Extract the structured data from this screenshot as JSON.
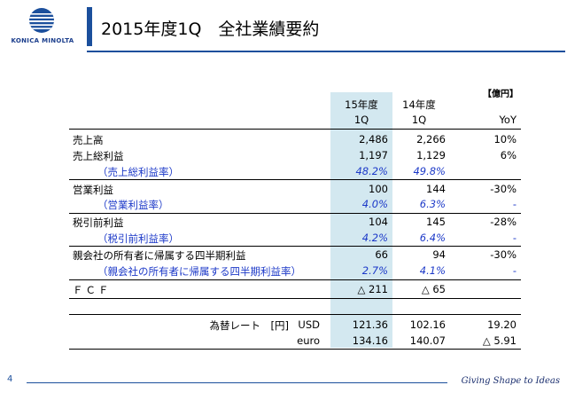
{
  "brand": {
    "logo_text": "KONICA MINOLTA",
    "tagline": "Giving Shape to Ideas",
    "color": "#1b4f9c"
  },
  "title": "2015年度1Q　全社業績要約",
  "unit_label": "【億円】",
  "headers": {
    "col1_line1": "15年度",
    "col1_line2": "1Q",
    "col2_line1": "14年度",
    "col2_line2": "1Q",
    "col3": "YoY"
  },
  "rows": [
    {
      "label": "売上高",
      "v15": "2,486",
      "v14": "2,266",
      "yoy": "10%"
    },
    {
      "label": "売上総利益",
      "v15": "1,197",
      "v14": "1,129",
      "yoy": "6%"
    },
    {
      "label": "（売上総利益率）",
      "v15": "48.2%",
      "v14": "49.8%",
      "yoy": ""
    },
    {
      "label": "営業利益",
      "v15": "100",
      "v14": "144",
      "yoy": "-30%"
    },
    {
      "label": "（営業利益率）",
      "v15": "4.0%",
      "v14": "6.3%",
      "yoy": "-"
    },
    {
      "label": "税引前利益",
      "v15": "104",
      "v14": "145",
      "yoy": "-28%"
    },
    {
      "label": "（税引前利益率）",
      "v15": "4.2%",
      "v14": "6.4%",
      "yoy": "-"
    },
    {
      "label": "親会社の所有者に帰属する四半期利益",
      "v15": "66",
      "v14": "94",
      "yoy": "-30%"
    },
    {
      "label": "（親会社の所有者に帰属する四半期利益率）",
      "v15": "2.7%",
      "v14": "4.1%",
      "yoy": "-"
    },
    {
      "label": "ＦＣＦ",
      "v15": "△ 211",
      "v14": "△ 65",
      "yoy": ""
    }
  ],
  "fx": {
    "label": "為替レート　[円]",
    "usd": {
      "cur": "USD",
      "v15": "121.36",
      "v14": "102.16",
      "diff": "19.20"
    },
    "euro": {
      "cur": "euro",
      "v15": "134.16",
      "v14": "140.07",
      "diff": "△ 5.91"
    }
  },
  "page_number": "4"
}
